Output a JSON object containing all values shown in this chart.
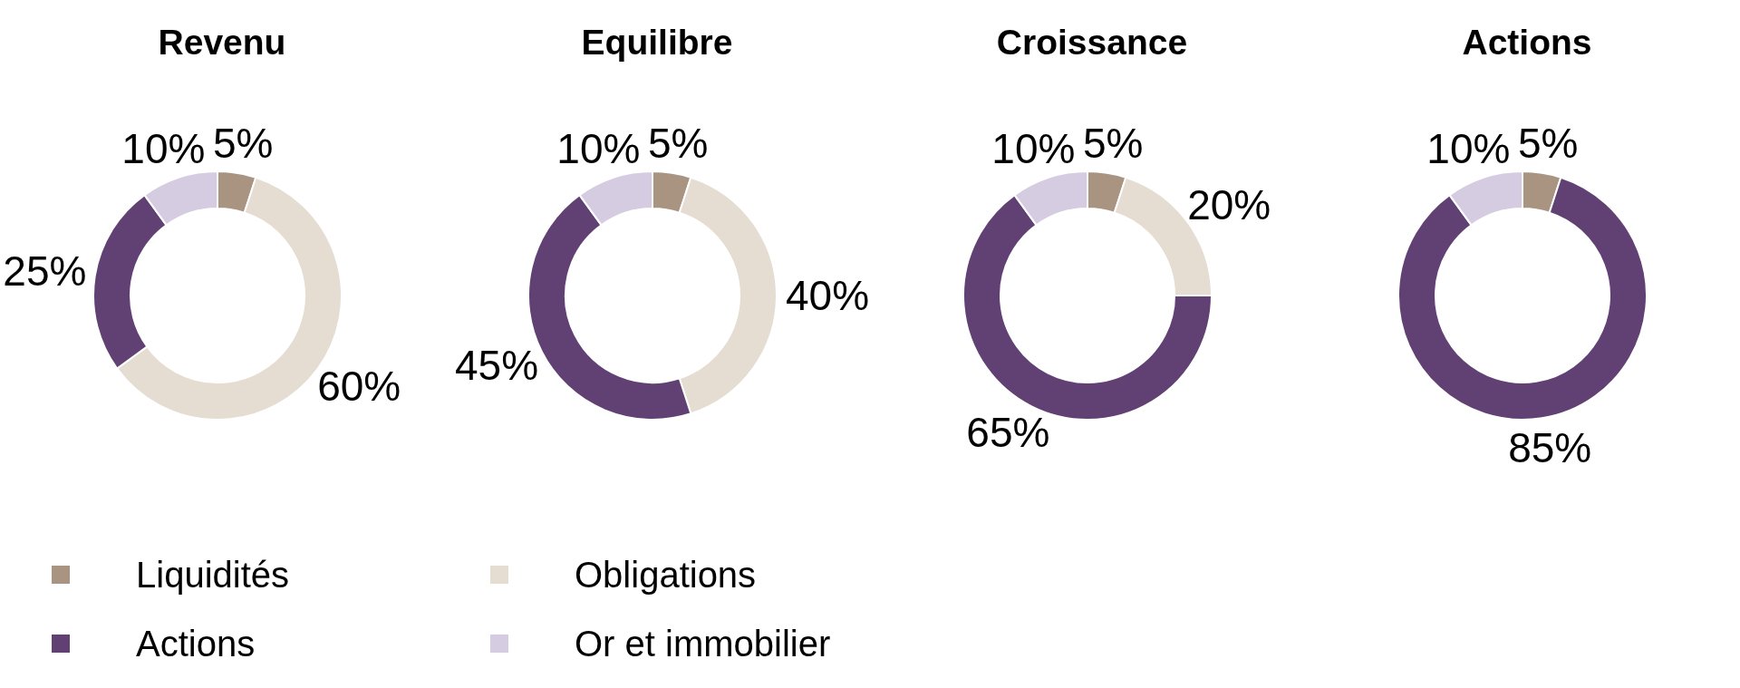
{
  "chart_data": [
    {
      "type": "donut",
      "title": "Revenu",
      "categories": [
        null,
        null,
        null,
        null
      ],
      "values": [
        5,
        60,
        25,
        10
      ],
      "colors": [
        "#a89481",
        "#e5dcd2",
        "#614173",
        "#d5cce2"
      ],
      "value_labels": [
        "5%",
        "60%",
        "25%",
        "10%"
      ]
    },
    {
      "type": "donut",
      "title": "Equilibre",
      "categories": [
        "Liquidités",
        "Obligations",
        "Actions",
        "Or et immobilier"
      ],
      "values": [
        5,
        40,
        45,
        10
      ],
      "colors": [
        "#a89481",
        "#e5dcd2",
        "#614173",
        "#d5cce2"
      ],
      "value_labels": [
        "5%",
        "40%",
        "45%",
        "10%"
      ],
      "legend": "bottom left"
    },
    {
      "type": "donut",
      "title": "Croissance",
      "categories": [
        null,
        null,
        null,
        null
      ],
      "values": [
        5,
        20,
        65,
        10
      ],
      "colors": [
        "#a89481",
        "#e5dcd2",
        "#614173",
        "#d5cce2"
      ],
      "value_labels": [
        "5%",
        "20%",
        "65%",
        "10%"
      ]
    },
    {
      "type": "donut",
      "title": "Actions",
      "categories": [
        null,
        null,
        null
      ],
      "values": [
        5,
        85,
        10
      ],
      "colors": [
        "#a89481",
        "#614173",
        "#d5cce2"
      ],
      "value_labels": [
        "5%",
        "85%",
        "10%"
      ]
    }
  ]
}
